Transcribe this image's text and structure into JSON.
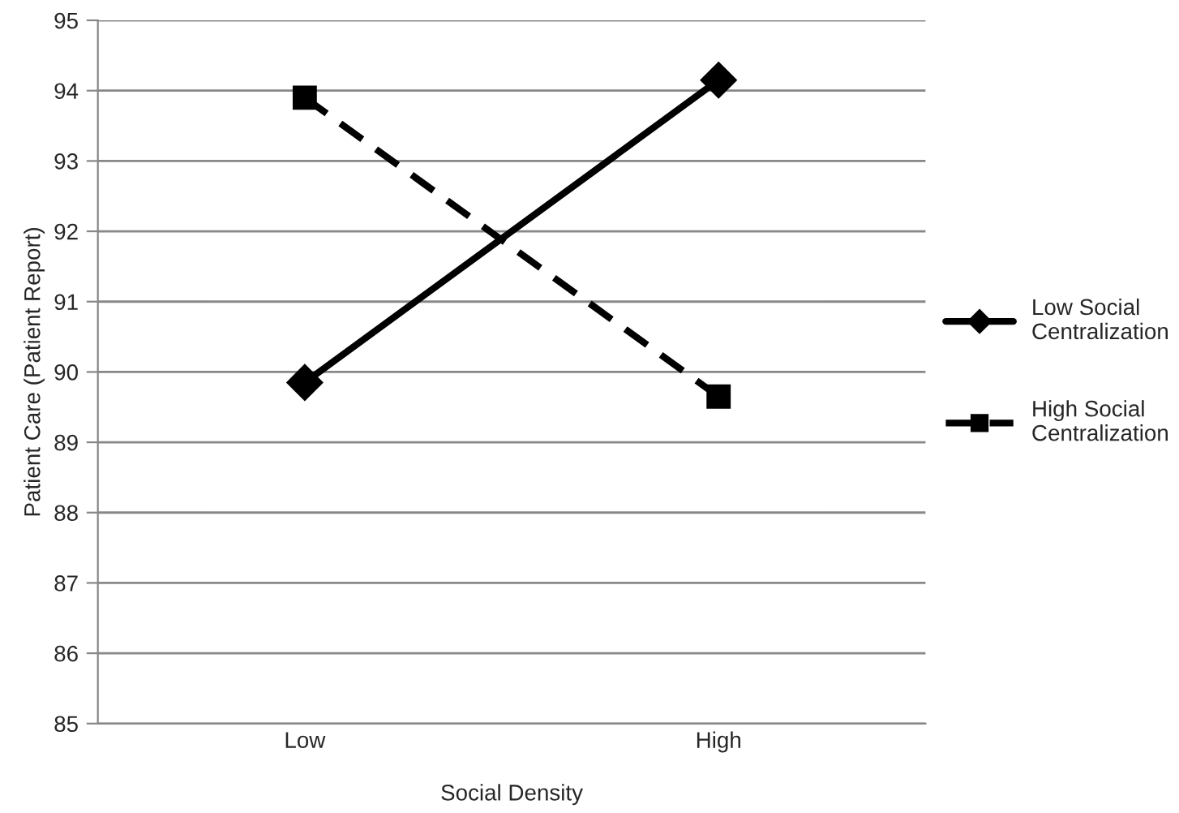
{
  "chart_data": {
    "type": "line",
    "xlabel": "Social Density",
    "ylabel": "Patient Care (Patient Report)",
    "categories": [
      "Low",
      "High"
    ],
    "series": [
      {
        "name": "Low Social Centralization",
        "color": "#000000",
        "values": [
          89.85,
          94.15
        ],
        "marker": "diamond",
        "line_style": "solid"
      },
      {
        "name": "High Social Centralization",
        "color": "#000000",
        "values": [
          93.9,
          89.65
        ],
        "marker": "square",
        "line_style": "dashed"
      }
    ],
    "ylim": [
      85,
      95
    ],
    "yticks": [
      85,
      86,
      87,
      88,
      89,
      90,
      91,
      92,
      93,
      94,
      95
    ],
    "grid": "y",
    "legend": "right"
  }
}
